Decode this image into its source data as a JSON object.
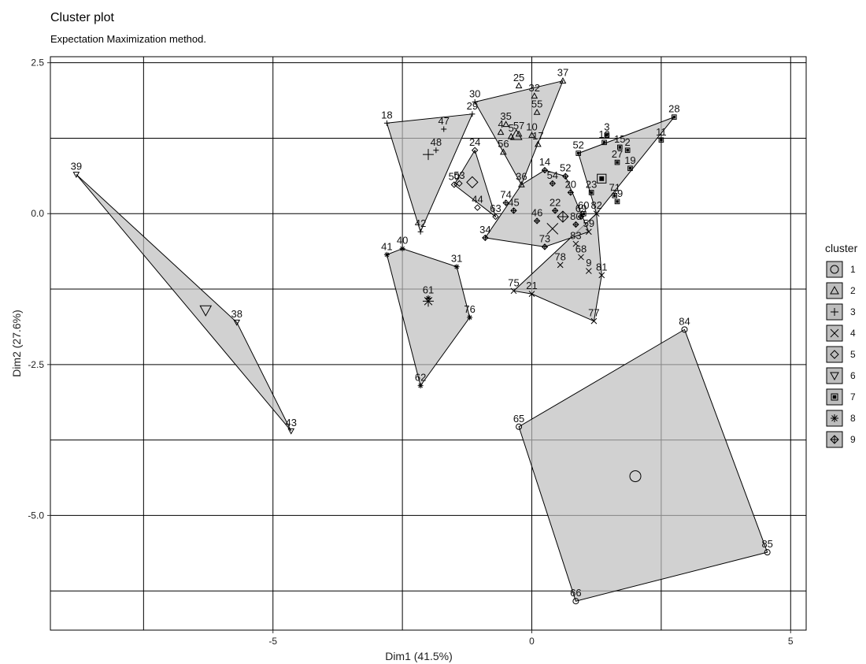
{
  "chart_data": {
    "type": "scatter",
    "title": "Cluster plot",
    "subtitle": "Expectation Maximization method.",
    "xlabel": "Dim1 (41.5%)",
    "ylabel": "Dim2 (27.6%)",
    "xlim": [
      -9.3,
      5.3
    ],
    "ylim": [
      -6.9,
      2.6
    ],
    "xticks": [
      -5,
      0,
      5
    ],
    "xtick_labels": [
      "-5",
      "0",
      "5"
    ],
    "yticks": [
      2.5,
      0,
      -2.5,
      -5
    ],
    "ytick_labels": [
      "2.5",
      "0.0",
      "-2.5",
      "-5.0"
    ],
    "x_gridlines": [
      -7.5,
      -5,
      -2.5,
      0,
      2.5,
      5
    ],
    "y_gridlines": [
      2.5,
      1.25,
      0,
      -1.25,
      -2.5,
      -3.75,
      -5,
      -6.25
    ],
    "grid": true,
    "legend": {
      "title": "cluster",
      "position": "right",
      "entries": [
        "1",
        "2",
        "3",
        "4",
        "5",
        "6",
        "7",
        "8",
        "9"
      ]
    },
    "colors": {
      "hull_fill": "#bdbdbd",
      "hull_stroke": "#000000",
      "background": "#ffffff"
    },
    "clusters": [
      {
        "name": "1",
        "shape": "circle",
        "centroid": [
          2.0,
          -4.35
        ],
        "points": [
          {
            "label": "84",
            "x": 2.95,
            "y": -1.92
          },
          {
            "label": "65",
            "x": -0.25,
            "y": -3.53
          },
          {
            "label": "85",
            "x": 4.55,
            "y": -5.61
          },
          {
            "label": "66",
            "x": 0.85,
            "y": -6.42
          }
        ],
        "hull": [
          "84",
          "65",
          "66",
          "85"
        ]
      },
      {
        "name": "2",
        "shape": "triangle-up",
        "centroid": [
          -0.3,
          1.3
        ],
        "points": [
          {
            "label": "25",
            "x": -0.25,
            "y": 2.12
          },
          {
            "label": "37",
            "x": 0.6,
            "y": 2.2
          },
          {
            "label": "32",
            "x": 0.05,
            "y": 1.95
          },
          {
            "label": "55",
            "x": 0.1,
            "y": 1.68
          },
          {
            "label": "35",
            "x": -0.5,
            "y": 1.48
          },
          {
            "label": "4",
            "x": -0.6,
            "y": 1.35
          },
          {
            "label": "57",
            "x": -0.25,
            "y": 1.32
          },
          {
            "label": "5",
            "x": -0.4,
            "y": 1.28
          },
          {
            "label": "10",
            "x": 0.0,
            "y": 1.3
          },
          {
            "label": "17",
            "x": 0.12,
            "y": 1.15
          },
          {
            "label": "56",
            "x": -0.55,
            "y": 1.02
          },
          {
            "label": "36",
            "x": -0.2,
            "y": 0.48
          }
        ],
        "hull": [
          "30",
          "37",
          "36",
          "56"
        ]
      },
      {
        "name": "3",
        "shape": "plus",
        "centroid": [
          -2.0,
          0.98
        ],
        "points": [
          {
            "label": "18",
            "x": -2.8,
            "y": 1.5
          },
          {
            "label": "29",
            "x": -1.15,
            "y": 1.65
          },
          {
            "label": "30",
            "x": -1.1,
            "y": 1.85
          },
          {
            "label": "47",
            "x": -1.7,
            "y": 1.4
          },
          {
            "label": "48",
            "x": -1.85,
            "y": 1.05
          },
          {
            "label": "42",
            "x": -2.15,
            "y": -0.3
          }
        ],
        "hull": [
          "18",
          "29",
          "42"
        ]
      },
      {
        "name": "4",
        "shape": "cross",
        "centroid": [
          0.4,
          -0.25
        ],
        "points": [
          {
            "label": "21",
            "x": 0.0,
            "y": -1.33
          },
          {
            "label": "75",
            "x": -0.35,
            "y": -1.28
          },
          {
            "label": "77",
            "x": 1.2,
            "y": -1.78
          },
          {
            "label": "78",
            "x": 0.55,
            "y": -0.85
          },
          {
            "label": "68",
            "x": 0.95,
            "y": -0.72
          },
          {
            "label": "9",
            "x": 1.1,
            "y": -0.95
          },
          {
            "label": "81",
            "x": 1.35,
            "y": -1.02
          },
          {
            "label": "83",
            "x": 0.85,
            "y": -0.5
          },
          {
            "label": "59",
            "x": 1.1,
            "y": -0.3
          },
          {
            "label": "82",
            "x": 1.25,
            "y": 0.0
          }
        ],
        "hull": [
          "75",
          "82",
          "81",
          "77",
          "21"
        ]
      },
      {
        "name": "5",
        "shape": "diamond",
        "centroid": [
          -1.15,
          0.52
        ],
        "points": [
          {
            "label": "24",
            "x": -1.1,
            "y": 1.05
          },
          {
            "label": "50",
            "x": -1.5,
            "y": 0.48
          },
          {
            "label": "53",
            "x": -1.4,
            "y": 0.5
          },
          {
            "label": "44",
            "x": -1.05,
            "y": 0.1
          },
          {
            "label": "63",
            "x": -0.7,
            "y": -0.05
          }
        ],
        "hull": [
          "24",
          "63",
          "50"
        ]
      },
      {
        "name": "6",
        "shape": "triangle-down",
        "centroid": [
          -6.3,
          -1.6
        ],
        "points": [
          {
            "label": "39",
            "x": -8.8,
            "y": 0.65
          },
          {
            "label": "38",
            "x": -5.7,
            "y": -1.8
          },
          {
            "label": "43",
            "x": -4.65,
            "y": -3.6
          }
        ],
        "hull": [
          "39",
          "38",
          "43"
        ]
      },
      {
        "name": "7",
        "shape": "square",
        "centroid": [
          1.35,
          0.58
        ],
        "points": [
          {
            "label": "28",
            "x": 2.75,
            "y": 1.6
          },
          {
            "label": "11",
            "x": 2.5,
            "y": 1.22
          },
          {
            "label": "3",
            "x": 1.45,
            "y": 1.3
          },
          {
            "label": "16",
            "x": 1.4,
            "y": 1.18
          },
          {
            "label": "15",
            "x": 1.7,
            "y": 1.1
          },
          {
            "label": "2",
            "x": 1.85,
            "y": 1.05
          },
          {
            "label": "27",
            "x": 1.65,
            "y": 0.85
          },
          {
            "label": "19",
            "x": 1.9,
            "y": 0.75
          },
          {
            "label": "52",
            "x": 0.9,
            "y": 1.0
          },
          {
            "label": "23",
            "x": 1.15,
            "y": 0.35
          },
          {
            "label": "71",
            "x": 1.6,
            "y": 0.3
          },
          {
            "label": "79",
            "x": 1.65,
            "y": 0.2
          },
          {
            "label": "60",
            "x": 1.0,
            "y": 0.0
          }
        ],
        "hull": [
          "28",
          "82",
          "52"
        ]
      },
      {
        "name": "8",
        "shape": "star",
        "centroid": [
          -2.0,
          -1.45
        ],
        "points": [
          {
            "label": "41",
            "x": -2.8,
            "y": -0.68
          },
          {
            "label": "40",
            "x": -2.5,
            "y": -0.58
          },
          {
            "label": "31",
            "x": -1.45,
            "y": -0.88
          },
          {
            "label": "61",
            "x": -2.0,
            "y": -1.4
          },
          {
            "label": "76",
            "x": -1.2,
            "y": -1.72
          },
          {
            "label": "62",
            "x": -2.15,
            "y": -2.85
          }
        ],
        "hull": [
          "41",
          "40",
          "31",
          "76",
          "62"
        ]
      },
      {
        "name": "9",
        "shape": "diamond-plus",
        "centroid": [
          0.6,
          -0.05
        ],
        "points": [
          {
            "label": "34",
            "x": -0.9,
            "y": -0.4
          },
          {
            "label": "74",
            "x": -0.5,
            "y": 0.18
          },
          {
            "label": "45",
            "x": -0.35,
            "y": 0.05
          },
          {
            "label": "46",
            "x": 0.1,
            "y": -0.12
          },
          {
            "label": "14",
            "x": 0.25,
            "y": 0.72
          },
          {
            "label": "54",
            "x": 0.4,
            "y": 0.5
          },
          {
            "label": "52",
            "x": 0.65,
            "y": 0.62
          },
          {
            "label": "20",
            "x": 0.75,
            "y": 0.35
          },
          {
            "label": "22",
            "x": 0.45,
            "y": 0.05
          },
          {
            "label": "69",
            "x": 0.95,
            "y": -0.05
          },
          {
            "label": "80",
            "x": 0.85,
            "y": -0.18
          },
          {
            "label": "73",
            "x": 0.25,
            "y": -0.55
          }
        ],
        "hull": [
          "34",
          "36",
          "14",
          "52",
          "59",
          "73"
        ]
      }
    ]
  }
}
